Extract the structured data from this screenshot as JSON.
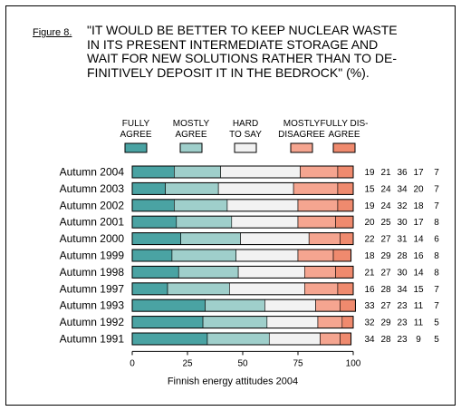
{
  "figure_label": "Figure 8.",
  "title_lines": [
    "\"IT WOULD BE BETTER TO KEEP NUCLEAR WASTE",
    "IN ITS PRESENT INTERMEDIATE STORAGE AND",
    "WAIT FOR NEW SOLUTIONS RATHER THAN TO DE-",
    "FINITIVELY DEPOSIT IT IN THE BEDROCK\" (%)."
  ],
  "chart_data": {
    "type": "bar",
    "stacked": true,
    "orientation": "horizontal",
    "categories": [
      "Autumn 2004",
      "Autumn 2003",
      "Autumn 2002",
      "Autumn 2001",
      "Autumn 2000",
      "Autumn 1999",
      "Autumn 1998",
      "Autumn 1997",
      "Autumn 1993",
      "Autumn 1992",
      "Autumn 1991"
    ],
    "series": [
      {
        "name": "FULLY AGREE",
        "legend_lines": [
          "FULLY",
          "AGREE"
        ],
        "color": "#4aa3a3",
        "values": [
          19,
          15,
          19,
          20,
          22,
          18,
          21,
          16,
          33,
          32,
          34
        ]
      },
      {
        "name": "MOSTLY AGREE",
        "legend_lines": [
          "MOSTLY",
          "AGREE"
        ],
        "color": "#9fcfcb",
        "values": [
          21,
          24,
          24,
          25,
          27,
          29,
          27,
          28,
          27,
          29,
          28
        ]
      },
      {
        "name": "HARD TO SAY",
        "legend_lines": [
          "HARD",
          "TO SAY"
        ],
        "color": "#f2f2f2",
        "values": [
          36,
          34,
          32,
          30,
          31,
          28,
          30,
          34,
          23,
          23,
          23
        ]
      },
      {
        "name": "MOSTLY DISAGREE",
        "legend_lines": [
          "MOSTLY",
          "DISAGREE"
        ],
        "color": "#f5a590",
        "values": [
          17,
          20,
          18,
          17,
          14,
          16,
          14,
          15,
          11,
          11,
          9
        ]
      },
      {
        "name": "FULLY DISAGREE",
        "legend_lines": [
          "FULLY DIS-",
          "AGREE"
        ],
        "color": "#ef8a6e",
        "values": [
          7,
          7,
          7,
          8,
          6,
          8,
          8,
          7,
          7,
          5,
          5
        ]
      }
    ],
    "xlim": [
      0,
      100
    ],
    "xticks": [
      0,
      25,
      50,
      75,
      100
    ],
    "xlabel": "Finnish energy attitudes 2004",
    "grid": false,
    "legend_position": "top"
  }
}
